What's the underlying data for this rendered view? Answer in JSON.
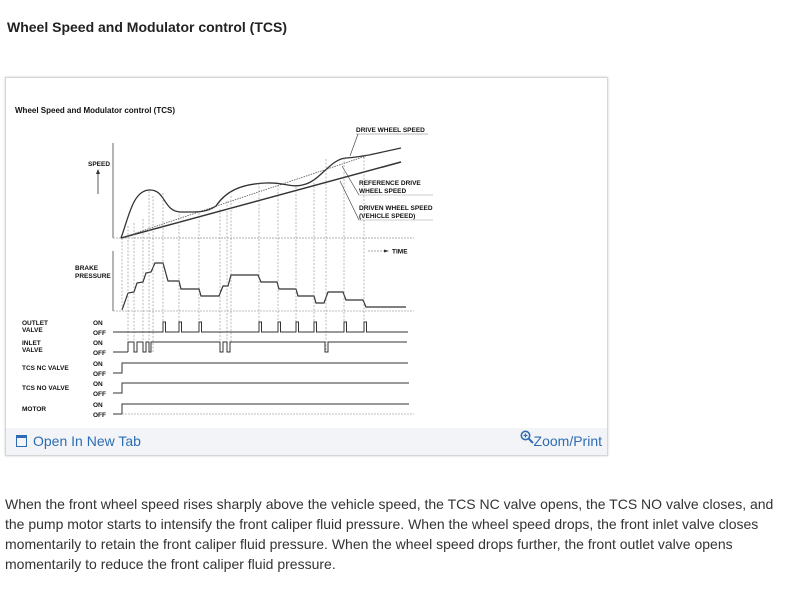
{
  "page": {
    "heading": "Wheel Speed and Modulator control (TCS)",
    "paragraph": " When the front wheel speed rises sharply above the vehicle speed, the TCS NC valve opens, the TCS NO valve closes, and the pump motor starts to intensify the front caliper fluid pressure. When the wheel speed drops, the front inlet valve closes momentarily to retain the front caliper fluid pressure. When the wheel speed drops further, the front outlet valve opens momentarily to reduce the front caliper fluid pressure."
  },
  "figure": {
    "title": "Wheel Speed and Modulator control (TCS)",
    "speed_label": "SPEED",
    "time_label": "TIME",
    "brake_label_1": "BRAKE",
    "brake_label_2": "PRESSURE",
    "drive_wheel_speed": "DRIVE WHEEL SPEED",
    "reference_1": "REFERENCE DRIVE",
    "reference_2": "WHEEL SPEED",
    "driven_1": "DRIVEN WHEEL SPEED",
    "driven_2": "(VEHICLE SPEED)",
    "rows": [
      {
        "label_1": "OUTLET",
        "label_2": "VALVE",
        "on": "ON",
        "off": "OFF"
      },
      {
        "label_1": "INLET",
        "label_2": "VALVE",
        "on": "ON",
        "off": "OFF"
      },
      {
        "label_1": "TCS NC VALVE",
        "label_2": "",
        "on": "ON",
        "off": "OFF"
      },
      {
        "label_1": "TCS NO VALVE",
        "label_2": "",
        "on": "ON",
        "off": "OFF"
      },
      {
        "label_1": "MOTOR",
        "label_2": "",
        "on": "ON",
        "off": "OFF"
      }
    ]
  },
  "footer": {
    "open_icon": "open-in-new-tab-icon",
    "open_label": "Open In New Tab",
    "zoom_icon": "magnifier-plus-icon",
    "zoom_label": "Zoom/Print",
    "link_color": "#2d6cb5"
  }
}
